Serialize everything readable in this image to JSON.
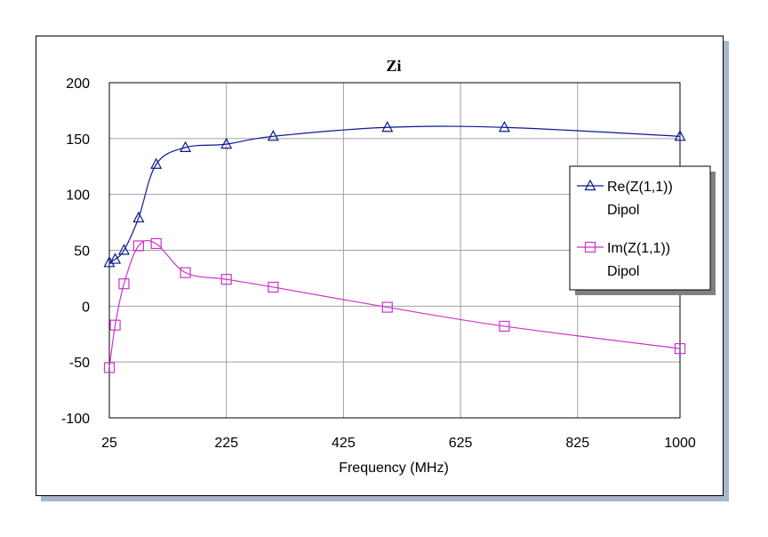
{
  "chart_data": {
    "type": "line",
    "title": "Zi",
    "xlabel": "Frequency (MHz)",
    "ylabel": "",
    "xlim": [
      25,
      1000
    ],
    "ylim": [
      -100,
      200
    ],
    "xticks": [
      25,
      225,
      425,
      625,
      825,
      1000
    ],
    "yticks": [
      200,
      150,
      100,
      50,
      0,
      -50,
      -100
    ],
    "grid": true,
    "legend_position": "right",
    "series": [
      {
        "name": "Re(Z(1,1))",
        "sub": "Dipol",
        "color": "#0a1a8c",
        "marker": "triangle",
        "x": [
          25,
          35,
          50,
          75,
          105,
          155,
          225,
          305,
          500,
          700,
          1000
        ],
        "y": [
          39,
          42,
          50,
          79,
          127,
          142,
          145,
          152,
          160,
          160,
          152
        ]
      },
      {
        "name": "Im(Z(1,1))",
        "sub": "Dipol",
        "color": "#cc33cc",
        "marker": "square",
        "x": [
          25,
          35,
          50,
          75,
          105,
          155,
          225,
          305,
          500,
          700,
          1000
        ],
        "y": [
          -55,
          -17,
          20,
          54,
          56,
          30,
          24,
          17,
          -1,
          -18,
          -38
        ]
      }
    ]
  }
}
